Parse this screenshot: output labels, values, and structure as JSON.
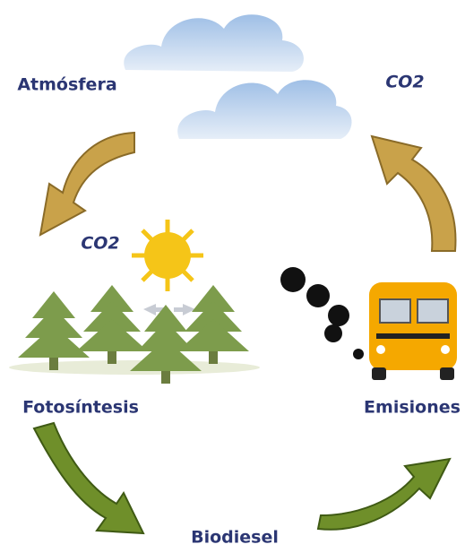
{
  "nodes": [
    {
      "label": "Atmósfera"
    },
    {
      "label": "CO2"
    },
    {
      "label": "CO2"
    },
    {
      "label": "Fotosíntesis"
    },
    {
      "label": "Emisiones"
    },
    {
      "label": "Biodiesel"
    }
  ]
}
